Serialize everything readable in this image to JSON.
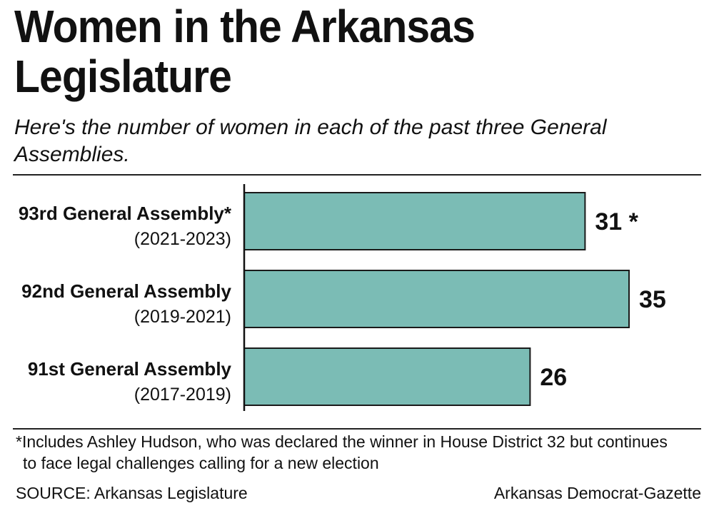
{
  "header": {
    "title_line1": "Women in the Arkansas",
    "title_line2": "Legislature",
    "subtitle_line1": "Here's the number of women in each of the past three General",
    "subtitle_line2": "Assemblies."
  },
  "chart_data": {
    "type": "bar",
    "orientation": "horizontal",
    "categories": [
      "93rd General Assembly*",
      "92nd General Assembly",
      "91st General Assembly"
    ],
    "category_sublabels": [
      "(2021-2023)",
      "(2019-2021)",
      "(2017-2019)"
    ],
    "values": [
      31,
      35,
      26
    ],
    "value_labels": [
      "31 *",
      "35",
      "26"
    ],
    "bar_color": "#7bbcb5",
    "bar_stroke": "#1a1a1a",
    "grid": false,
    "legend": "none"
  },
  "footer": {
    "footnote_line1": "*Includes Ashley Hudson, who was declared the winner in House District 32 but continues",
    "footnote_line2": "to face legal challenges calling for a new election",
    "source": "SOURCE: Arkansas Legislature",
    "credit": "Arkansas Democrat-Gazette"
  }
}
